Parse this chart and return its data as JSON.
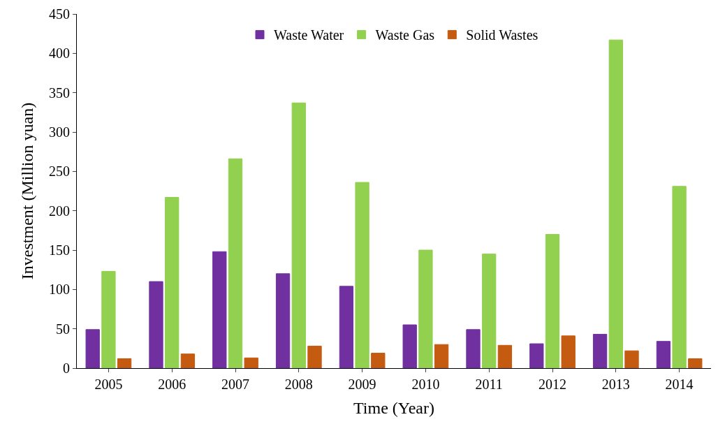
{
  "chart_data": {
    "type": "bar",
    "xlabel": "Time (Year)",
    "ylabel": "Investment (Million yuan)",
    "categories": [
      "2005",
      "2006",
      "2007",
      "2008",
      "2009",
      "2010",
      "2011",
      "2012",
      "2013",
      "2014"
    ],
    "series": [
      {
        "name": "Waste Water",
        "color": "#7030a0",
        "values": [
          49,
          110,
          148,
          120,
          104,
          55,
          49,
          31,
          43,
          34
        ]
      },
      {
        "name": "Waste Gas",
        "color": "#92d050",
        "values": [
          123,
          217,
          266,
          337,
          236,
          150,
          145,
          170,
          417,
          231
        ]
      },
      {
        "name": "Solid Wastes",
        "color": "#c55a11",
        "values": [
          12,
          18,
          13,
          28,
          19,
          30,
          29,
          41,
          22,
          12
        ]
      }
    ],
    "ylim": [
      0,
      450
    ],
    "yticks": [
      0,
      50,
      100,
      150,
      200,
      250,
      300,
      350,
      400,
      450
    ],
    "grid": false,
    "legend": "top"
  }
}
